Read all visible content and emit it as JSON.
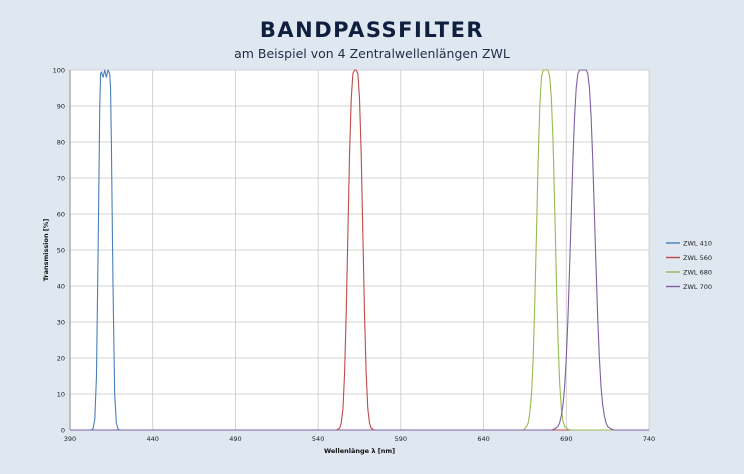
{
  "header": {
    "title": "BANDPASSFILTER",
    "subtitle": "am Beispiel von 4 Zentralwellenlängen ZWL"
  },
  "chart_data": {
    "type": "line",
    "xlabel": "Wellenlänge λ [nm]",
    "ylabel": "Transmission [%]",
    "xlim": [
      390,
      740
    ],
    "ylim": [
      0,
      100
    ],
    "xticks": [
      390,
      440,
      490,
      540,
      590,
      640,
      690,
      740
    ],
    "yticks": [
      0,
      10,
      20,
      30,
      40,
      50,
      60,
      70,
      80,
      90,
      100
    ],
    "grid": true,
    "legend_position": "right",
    "series": [
      {
        "name": "ZWL 410",
        "color": "#4a7ebb",
        "points": [
          [
            390,
            0
          ],
          [
            403,
            0
          ],
          [
            404,
            0.5
          ],
          [
            405,
            3
          ],
          [
            406,
            15
          ],
          [
            407,
            50
          ],
          [
            408,
            90
          ],
          [
            408.5,
            99
          ],
          [
            409,
            99.5
          ],
          [
            410,
            98
          ],
          [
            411,
            100
          ],
          [
            412,
            98
          ],
          [
            413,
            100
          ],
          [
            414,
            99
          ],
          [
            414.5,
            95
          ],
          [
            415,
            80
          ],
          [
            416,
            40
          ],
          [
            417,
            10
          ],
          [
            418,
            2
          ],
          [
            419,
            0.3
          ],
          [
            420,
            0
          ],
          [
            740,
            0
          ]
        ]
      },
      {
        "name": "ZWL 560",
        "color": "#be4b48",
        "points": [
          [
            390,
            0
          ],
          [
            551,
            0
          ],
          [
            553,
            0.5
          ],
          [
            554,
            2
          ],
          [
            555,
            6
          ],
          [
            556,
            16
          ],
          [
            557,
            33
          ],
          [
            558,
            55
          ],
          [
            559,
            77
          ],
          [
            560,
            92
          ],
          [
            561,
            99
          ],
          [
            562,
            100
          ],
          [
            563,
            100
          ],
          [
            564,
            99
          ],
          [
            565,
            92
          ],
          [
            566,
            77
          ],
          [
            567,
            55
          ],
          [
            568,
            33
          ],
          [
            569,
            16
          ],
          [
            570,
            6
          ],
          [
            571,
            2
          ],
          [
            572,
            0.5
          ],
          [
            574,
            0
          ],
          [
            740,
            0
          ]
        ]
      },
      {
        "name": "ZWL 680",
        "color": "#98b954",
        "points": [
          [
            390,
            0
          ],
          [
            664,
            0
          ],
          [
            665,
            0.5
          ],
          [
            666,
            1
          ],
          [
            667,
            2
          ],
          [
            668,
            5
          ],
          [
            669,
            10
          ],
          [
            670,
            20
          ],
          [
            671,
            36
          ],
          [
            672,
            55
          ],
          [
            673,
            75
          ],
          [
            674,
            90
          ],
          [
            675,
            98
          ],
          [
            676,
            100
          ],
          [
            677,
            100
          ],
          [
            678,
            100
          ],
          [
            679,
            100
          ],
          [
            680,
            98
          ],
          [
            681,
            92
          ],
          [
            682,
            80
          ],
          [
            683,
            62
          ],
          [
            684,
            42
          ],
          [
            685,
            25
          ],
          [
            686,
            13
          ],
          [
            687,
            6
          ],
          [
            688,
            2.5
          ],
          [
            689,
            1
          ],
          [
            691,
            0.2
          ],
          [
            693,
            0
          ],
          [
            740,
            0
          ]
        ]
      },
      {
        "name": "ZWL 700",
        "color": "#7d60a0",
        "points": [
          [
            390,
            0
          ],
          [
            681,
            0
          ],
          [
            683,
            0.3
          ],
          [
            685,
            1
          ],
          [
            686,
            2
          ],
          [
            687,
            4
          ],
          [
            688,
            7
          ],
          [
            689,
            12
          ],
          [
            690,
            20
          ],
          [
            691,
            31
          ],
          [
            692,
            45
          ],
          [
            693,
            60
          ],
          [
            694,
            75
          ],
          [
            695,
            87
          ],
          [
            696,
            95
          ],
          [
            697,
            99
          ],
          [
            698,
            100
          ],
          [
            699,
            100
          ],
          [
            700,
            100
          ],
          [
            701,
            100
          ],
          [
            702,
            100
          ],
          [
            703,
            99
          ],
          [
            704,
            95
          ],
          [
            705,
            87
          ],
          [
            706,
            75
          ],
          [
            707,
            60
          ],
          [
            708,
            45
          ],
          [
            709,
            31
          ],
          [
            710,
            20
          ],
          [
            711,
            12
          ],
          [
            712,
            7
          ],
          [
            713,
            4
          ],
          [
            714,
            2
          ],
          [
            715,
            1
          ],
          [
            717,
            0.3
          ],
          [
            719,
            0
          ],
          [
            740,
            0
          ]
        ]
      }
    ]
  }
}
